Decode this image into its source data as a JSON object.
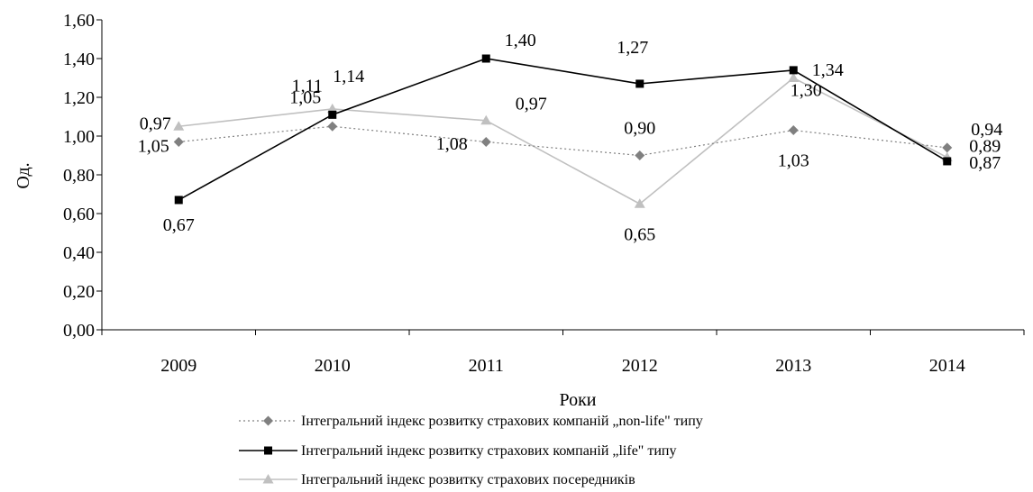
{
  "chart_data": {
    "type": "line",
    "title": "",
    "xlabel": "Роки",
    "ylabel": "Од.",
    "categories": [
      "2009",
      "2010",
      "2011",
      "2012",
      "2013",
      "2014"
    ],
    "ylim": [
      0,
      1.6
    ],
    "yticks": [
      "0,00",
      "0,20",
      "0,40",
      "0,60",
      "0,80",
      "1,00",
      "1,20",
      "1,40",
      "1,60"
    ],
    "grid": false,
    "legend_position": "bottom",
    "series": [
      {
        "name": "Інтегральний індекс розвитку страхових компаній „non-life\" типу",
        "values": [
          0.97,
          1.05,
          0.97,
          0.9,
          1.03,
          0.94
        ],
        "labels": [
          "0,97",
          "1,05",
          "0,97",
          "0,90",
          "1,03",
          "0,94"
        ],
        "color": "#808080",
        "marker": "diamond",
        "line_style": "dotted"
      },
      {
        "name": "Інтегральний індекс розвитку страхових компаній „life\" типу",
        "values": [
          0.67,
          1.11,
          1.4,
          1.27,
          1.34,
          0.87
        ],
        "labels": [
          "0,67",
          "1,11",
          "1,40",
          "1,27",
          "1,34",
          "0,87"
        ],
        "color": "#000000",
        "marker": "square",
        "line_style": "solid"
      },
      {
        "name": "Інтегральний індекс розвитку страхових посередників",
        "values": [
          1.05,
          1.14,
          1.08,
          0.65,
          1.3,
          0.89
        ],
        "labels": [
          "1,05",
          "1,14",
          "1,08",
          "0,65",
          "1,30",
          "0,89"
        ],
        "color": "#c0c0c0",
        "marker": "triangle",
        "line_style": "solid"
      }
    ]
  }
}
